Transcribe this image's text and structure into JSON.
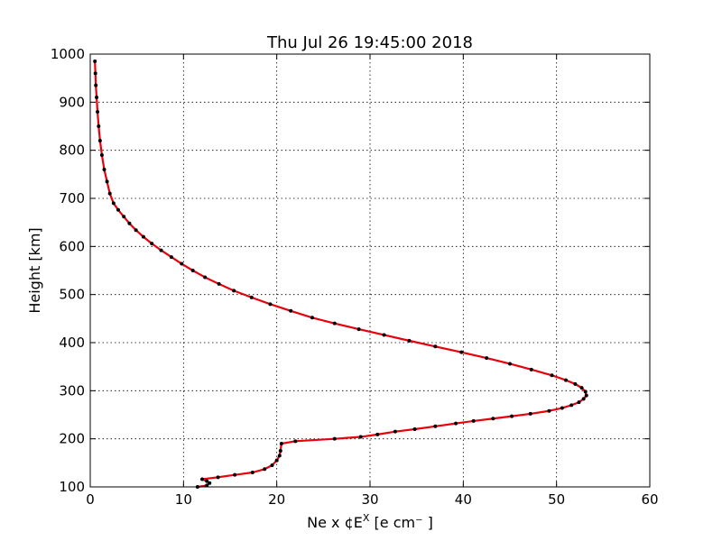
{
  "chart_data": {
    "type": "line",
    "title": "Thu Jul 26 19:45:00 2018",
    "xlabel": "Ne x ¢E",
    "xlabel_super": "X",
    "xlabel_tail": "  [e cm⁻ ]",
    "ylabel": "Height [km]",
    "xlim": [
      0,
      60
    ],
    "ylim": [
      100,
      1000
    ],
    "xticks": [
      0,
      10,
      20,
      30,
      40,
      50,
      60
    ],
    "yticks": [
      100,
      200,
      300,
      400,
      500,
      600,
      700,
      800,
      900,
      1000
    ],
    "grid": true,
    "line_color": "#e8000b",
    "marker_color": "#000000",
    "series": [
      {
        "x": [
          11.5,
          12.5,
          12.8,
          12.5,
          12.0,
          13.7,
          15.5,
          17.4,
          18.7,
          19.5,
          20.0,
          20.3,
          20.4,
          20.5,
          22.0,
          26.2,
          29.0,
          30.8,
          32.7,
          34.8,
          37.0,
          39.2,
          41.1,
          43.2,
          45.2,
          47.2,
          49.2,
          50.6,
          51.6,
          52.4,
          52.9,
          53.2,
          53.1,
          52.7,
          52.0,
          51.0,
          49.5,
          47.3,
          45.0,
          42.5,
          39.8,
          37.0,
          34.2,
          31.5,
          28.8,
          26.2,
          23.8,
          21.5,
          19.3,
          17.3,
          15.4,
          13.8,
          12.3,
          11.0,
          9.8,
          8.7,
          7.6,
          6.6,
          5.7,
          4.9,
          4.2,
          3.6,
          3.0,
          2.5,
          2.1,
          1.8,
          1.5,
          1.25,
          1.05,
          0.9,
          0.78,
          0.68,
          0.6,
          0.55,
          0.5
        ],
        "y": [
          100,
          103,
          108,
          112,
          116,
          120,
          125,
          130,
          137,
          145,
          155,
          165,
          175,
          190,
          195,
          200,
          204,
          209,
          215,
          220,
          226,
          232,
          237,
          242,
          247,
          252,
          258,
          264,
          270,
          276,
          283,
          290,
          298,
          306,
          314,
          322,
          332,
          344,
          356,
          368,
          380,
          392,
          404,
          416,
          428,
          440,
          452,
          466,
          480,
          494,
          508,
          522,
          536,
          550,
          564,
          578,
          592,
          606,
          620,
          634,
          648,
          662,
          676,
          690,
          710,
          735,
          760,
          790,
          820,
          850,
          880,
          910,
          935,
          960,
          985
        ]
      }
    ]
  }
}
